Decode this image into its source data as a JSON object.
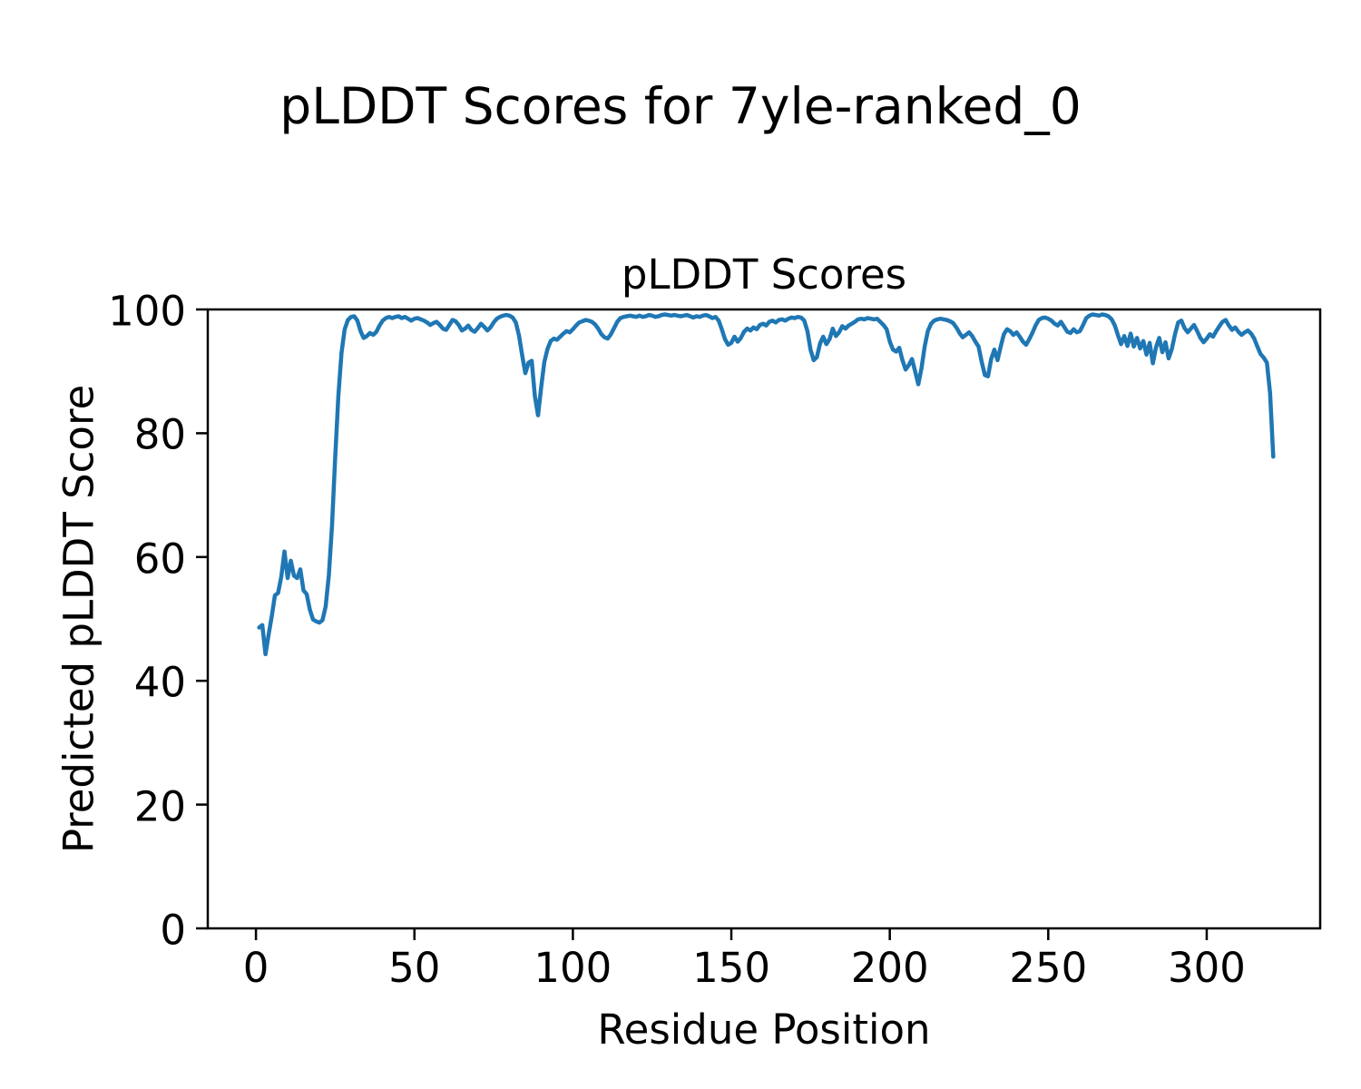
{
  "figure": {
    "title": "pLDDT Scores for 7yle-ranked_0",
    "background_color": "#ffffff",
    "text_color": "#000000"
  },
  "chart_data": {
    "type": "line",
    "title": "pLDDT Scores",
    "xlabel": "Residue Position",
    "ylabel": "Predicted pLDDT Score",
    "x_ticks": [
      0,
      50,
      100,
      150,
      200,
      250,
      300
    ],
    "y_ticks": [
      0,
      20,
      40,
      60,
      80,
      100
    ],
    "xlim": [
      -15.2,
      335.8
    ],
    "ylim": [
      0,
      100
    ],
    "grid": false,
    "legend": "none",
    "line_color": "#1f77b4",
    "line_width": 4.5,
    "series": [
      {
        "name": "pLDDT",
        "x_start": 1,
        "x_step": 1,
        "n_points": 321,
        "y": [
          48.6,
          49.0,
          44.3,
          47.5,
          50.5,
          53.8,
          54.2,
          56.8,
          60.9,
          56.6,
          59.4,
          57.0,
          56.6,
          58.0,
          54.6,
          54.0,
          51.5,
          49.9,
          49.6,
          49.4,
          49.8,
          52.0,
          57.0,
          65.0,
          76.0,
          86.0,
          93.0,
          96.8,
          98.3,
          98.8,
          98.9,
          98.2,
          96.5,
          95.4,
          95.7,
          96.2,
          95.9,
          96.4,
          97.4,
          98.2,
          98.6,
          98.8,
          98.6,
          98.8,
          98.9,
          98.6,
          98.8,
          98.5,
          98.2,
          98.5,
          98.6,
          98.4,
          98.2,
          97.9,
          97.5,
          97.8,
          98.0,
          97.5,
          96.9,
          96.7,
          97.5,
          98.3,
          98.1,
          97.5,
          96.6,
          96.9,
          97.4,
          96.7,
          96.4,
          97.0,
          97.7,
          97.2,
          96.6,
          97.1,
          97.9,
          98.5,
          98.8,
          99.0,
          99.1,
          99.0,
          98.7,
          97.9,
          95.8,
          92.6,
          89.7,
          91.4,
          91.7,
          86.0,
          82.9,
          87.5,
          91.5,
          93.6,
          94.9,
          95.3,
          95.1,
          95.6,
          96.1,
          96.5,
          96.3,
          96.8,
          97.4,
          97.9,
          98.1,
          98.3,
          98.2,
          98.0,
          97.6,
          96.9,
          96.0,
          95.5,
          95.3,
          96.0,
          97.0,
          98.0,
          98.6,
          98.8,
          98.9,
          99.0,
          98.9,
          98.8,
          99.0,
          98.8,
          98.9,
          99.1,
          99.0,
          98.8,
          98.9,
          99.1,
          99.2,
          99.1,
          99.0,
          99.1,
          99.0,
          98.9,
          99.0,
          99.1,
          98.9,
          98.7,
          98.9,
          98.8,
          99.0,
          99.1,
          98.9,
          98.6,
          98.8,
          98.2,
          96.8,
          95.2,
          94.3,
          94.6,
          95.6,
          94.8,
          95.4,
          96.4,
          96.9,
          96.6,
          97.1,
          96.8,
          97.5,
          97.7,
          97.4,
          98.0,
          98.2,
          97.9,
          98.3,
          98.4,
          98.2,
          98.5,
          98.7,
          98.6,
          98.8,
          98.7,
          98.2,
          96.5,
          93.5,
          91.8,
          92.3,
          94.5,
          95.6,
          94.4,
          95.2,
          96.9,
          95.7,
          96.3,
          97.3,
          96.9,
          97.4,
          97.7,
          98.0,
          98.4,
          98.5,
          98.4,
          98.6,
          98.5,
          98.4,
          98.5,
          98.0,
          97.5,
          96.8,
          94.8,
          93.5,
          93.2,
          93.8,
          91.8,
          90.3,
          91.0,
          92.0,
          90.0,
          87.9,
          90.5,
          94.0,
          96.5,
          97.7,
          98.2,
          98.4,
          98.5,
          98.4,
          98.3,
          98.1,
          97.8,
          97.1,
          96.2,
          95.5,
          95.9,
          96.3,
          95.7,
          94.8,
          94.0,
          91.5,
          89.4,
          89.2,
          92.0,
          93.5,
          91.8,
          94.0,
          96.0,
          96.8,
          96.5,
          95.9,
          96.3,
          95.6,
          94.8,
          94.3,
          95.2,
          96.2,
          97.4,
          98.3,
          98.6,
          98.7,
          98.5,
          98.2,
          97.7,
          97.4,
          98.0,
          97.2,
          96.4,
          96.2,
          96.8,
          96.3,
          96.5,
          97.5,
          98.6,
          99.0,
          99.2,
          99.1,
          99.0,
          99.2,
          99.1,
          98.9,
          98.4,
          97.4,
          95.8,
          94.4,
          95.7,
          94.1,
          96.1,
          94.0,
          95.4,
          93.7,
          94.9,
          92.7,
          94.6,
          91.3,
          93.9,
          95.4,
          93.1,
          94.7,
          92.1,
          93.6,
          96.0,
          97.9,
          98.2,
          97.0,
          96.3,
          96.9,
          97.5,
          96.5,
          95.4,
          94.7,
          95.3,
          96.0,
          95.6,
          96.5,
          97.3,
          98.0,
          98.3,
          97.4,
          96.7,
          97.1,
          96.4,
          95.9,
          96.3,
          96.6,
          96.1,
          95.3,
          94.0,
          92.8,
          92.2,
          91.4,
          86.5,
          76.2
        ]
      }
    ]
  }
}
